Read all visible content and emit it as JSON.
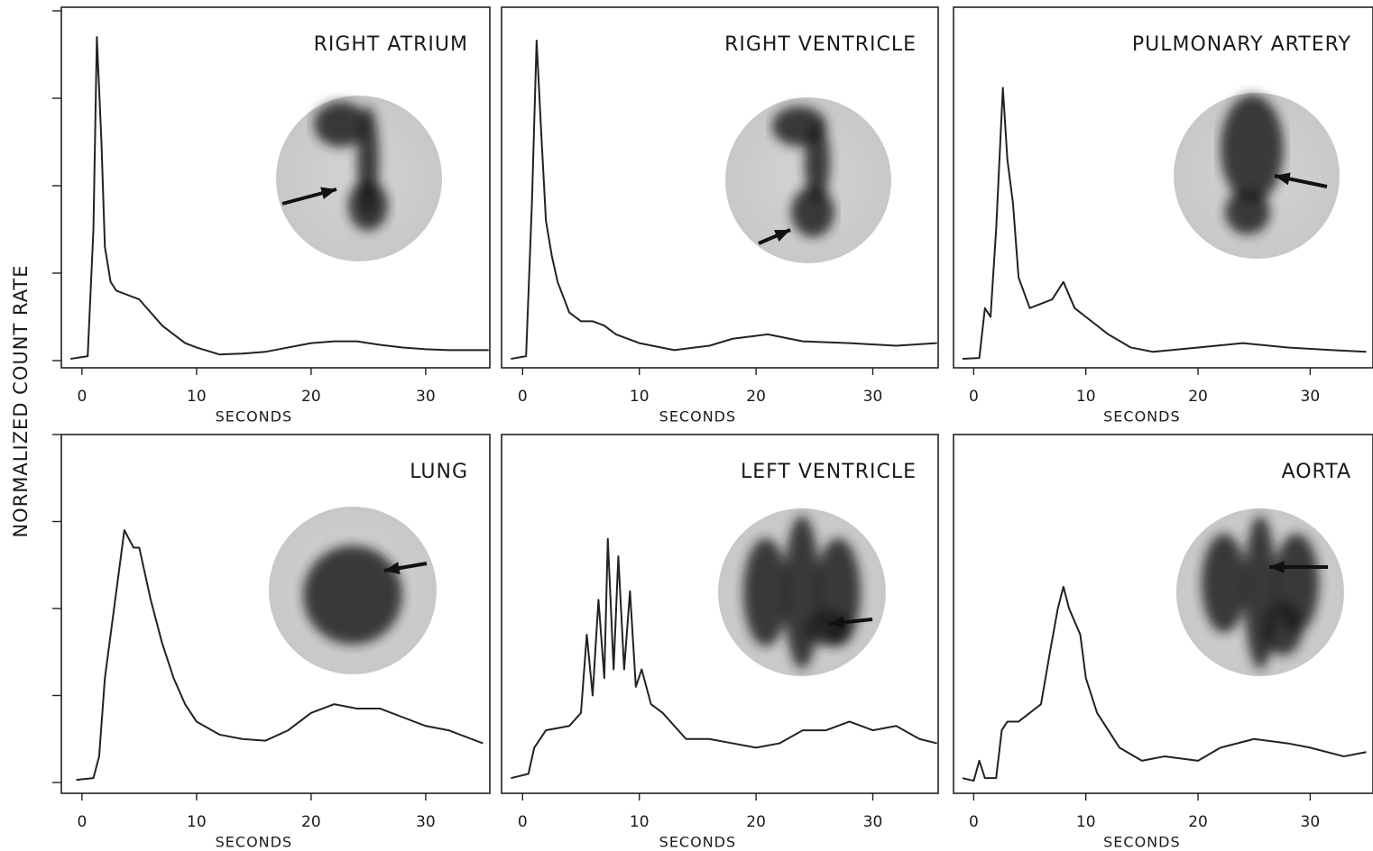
{
  "ylabel": "NORMALIZED COUNT RATE",
  "chart_data": [
    {
      "type": "line",
      "title": "RIGHT ATRIUM",
      "xlabel": "SECONDS",
      "xlim": [
        -1.8,
        35.6
      ],
      "ylim": [
        0,
        4
      ],
      "xticks": [
        0,
        10,
        20,
        30
      ],
      "yticks": [
        0,
        1,
        2,
        3,
        4
      ],
      "color": "#222222",
      "x": [
        -1,
        0.5,
        1,
        1.3,
        1.7,
        2,
        2.5,
        3,
        4,
        5,
        6,
        7,
        8,
        9,
        10,
        12,
        14,
        16,
        18,
        20,
        22,
        24,
        26,
        28,
        30,
        32,
        34,
        35.5
      ],
      "values": [
        0.02,
        0.05,
        1.5,
        3.7,
        2.5,
        1.3,
        0.9,
        0.8,
        0.75,
        0.7,
        0.55,
        0.4,
        0.3,
        0.2,
        0.15,
        0.07,
        0.08,
        0.1,
        0.15,
        0.2,
        0.22,
        0.22,
        0.18,
        0.15,
        0.13,
        0.12,
        0.12,
        0.12
      ]
    },
    {
      "type": "line",
      "title": "RIGHT VENTRICLE",
      "xlabel": "SECONDS",
      "xlim": [
        -1.8,
        35.6
      ],
      "ylim": [
        0,
        4
      ],
      "xticks": [
        0,
        10,
        20,
        30
      ],
      "color": "#222222",
      "x": [
        -1,
        0.3,
        0.8,
        1.2,
        1.6,
        2,
        2.5,
        3,
        4,
        5,
        6,
        7,
        8,
        10,
        13,
        16,
        18,
        21,
        24,
        28,
        32,
        35.5
      ],
      "values": [
        0.02,
        0.05,
        1.8,
        3.66,
        2.6,
        1.6,
        1.2,
        0.9,
        0.55,
        0.45,
        0.45,
        0.4,
        0.3,
        0.2,
        0.12,
        0.17,
        0.25,
        0.3,
        0.22,
        0.2,
        0.17,
        0.2
      ]
    },
    {
      "type": "line",
      "title": "PULMONARY ARTERY",
      "xlabel": "SECONDS",
      "xlim": [
        -1.8,
        35.6
      ],
      "ylim": [
        0,
        4
      ],
      "xticks": [
        0,
        10,
        20,
        30
      ],
      "color": "#222222",
      "x": [
        -1,
        0.5,
        1,
        1.5,
        2,
        2.6,
        3,
        3.5,
        4,
        5,
        6,
        7,
        8,
        9,
        10,
        12,
        14,
        16,
        20,
        24,
        28,
        32,
        35
      ],
      "values": [
        0.02,
        0.03,
        0.6,
        0.5,
        1.5,
        3.12,
        2.3,
        1.8,
        0.95,
        0.6,
        0.65,
        0.7,
        0.9,
        0.6,
        0.5,
        0.3,
        0.15,
        0.1,
        0.15,
        0.2,
        0.15,
        0.12,
        0.1
      ]
    },
    {
      "type": "line",
      "title": "LUNG",
      "xlabel": "SECONDS",
      "xlim": [
        -1.8,
        35.6
      ],
      "ylim": [
        0,
        4
      ],
      "xticks": [
        0,
        10,
        20,
        30
      ],
      "yticks": [
        0,
        1,
        2,
        3,
        4
      ],
      "color": "#222222",
      "x": [
        -0.5,
        1,
        1.5,
        2,
        3,
        3.7,
        4.5,
        5,
        6,
        7,
        8,
        9,
        10,
        12,
        14,
        16,
        18,
        20,
        22,
        24,
        26,
        28,
        30,
        32,
        34,
        35
      ],
      "values": [
        0.03,
        0.05,
        0.3,
        1.2,
        2.2,
        2.9,
        2.7,
        2.7,
        2.1,
        1.6,
        1.2,
        0.9,
        0.7,
        0.55,
        0.5,
        0.48,
        0.6,
        0.8,
        0.9,
        0.85,
        0.85,
        0.75,
        0.65,
        0.6,
        0.5,
        0.45
      ]
    },
    {
      "type": "line",
      "title": "LEFT VENTRICLE",
      "xlabel": "SECONDS",
      "xlim": [
        -1.8,
        35.6
      ],
      "ylim": [
        0,
        4
      ],
      "xticks": [
        0,
        10,
        20,
        30
      ],
      "color": "#222222",
      "x": [
        -1,
        0.5,
        1,
        2,
        4,
        5,
        5.5,
        6,
        6.5,
        7,
        7.3,
        7.8,
        8.2,
        8.7,
        9.2,
        9.7,
        10.2,
        11,
        12,
        14,
        16,
        18,
        20,
        22,
        24,
        26,
        28,
        30,
        32,
        34,
        35.5
      ],
      "values": [
        0.05,
        0.1,
        0.4,
        0.6,
        0.65,
        0.8,
        1.7,
        1.0,
        2.1,
        1.2,
        2.8,
        1.3,
        2.6,
        1.3,
        2.2,
        1.1,
        1.3,
        0.9,
        0.8,
        0.5,
        0.5,
        0.45,
        0.4,
        0.45,
        0.6,
        0.6,
        0.7,
        0.6,
        0.65,
        0.5,
        0.45
      ]
    },
    {
      "type": "line",
      "title": "AORTA",
      "xlabel": "SECONDS",
      "xlim": [
        -1.8,
        35.6
      ],
      "ylim": [
        0,
        4
      ],
      "xticks": [
        0,
        10,
        20,
        30
      ],
      "color": "#222222",
      "x": [
        -1,
        0,
        0.5,
        1,
        2,
        2.5,
        3,
        4,
        5,
        6,
        6.8,
        7.5,
        8,
        8.5,
        9.5,
        10,
        11,
        12,
        13,
        15,
        17,
        20,
        22,
        25,
        28,
        30,
        33,
        35
      ],
      "values": [
        0.05,
        0.02,
        0.25,
        0.05,
        0.05,
        0.6,
        0.7,
        0.7,
        0.8,
        0.9,
        1.5,
        2.0,
        2.25,
        2.0,
        1.7,
        1.2,
        0.8,
        0.6,
        0.4,
        0.25,
        0.3,
        0.25,
        0.4,
        0.5,
        0.45,
        0.4,
        0.3,
        0.35
      ]
    }
  ]
}
